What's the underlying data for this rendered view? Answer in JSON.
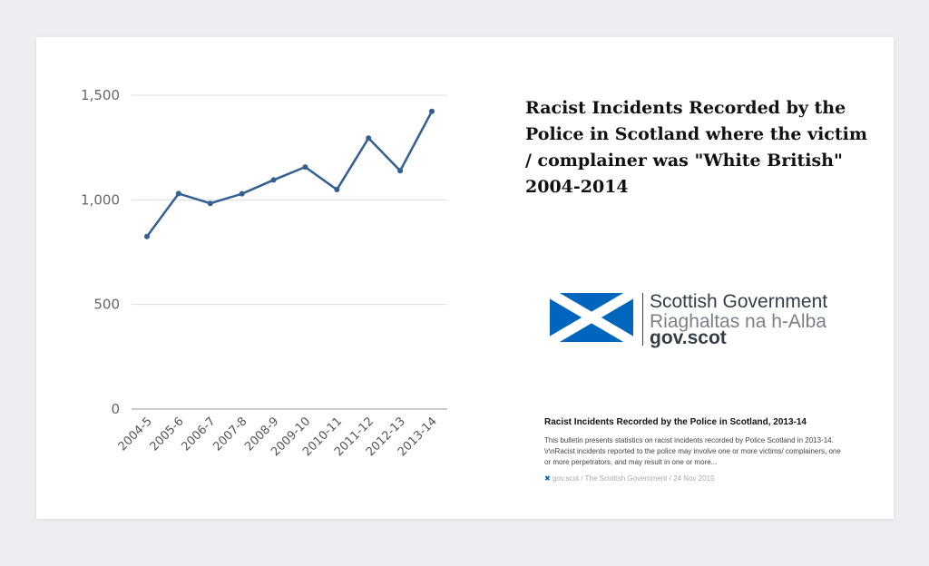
{
  "chart_data": {
    "type": "line",
    "title": "Racist Incidents Recorded by the Police in Scotland where the victim / complainer was \"White British\" 2004-2014",
    "categories": [
      "2004-5",
      "2005-6",
      "2006-7",
      "2007-8",
      "2008-9",
      "2009-10",
      "2010-11",
      "2011-12",
      "2012-13",
      "2013-14"
    ],
    "series": [
      {
        "name": "White British",
        "values": [
          825,
          1030,
          983,
          1029,
          1095,
          1157,
          1049,
          1295,
          1139,
          1423
        ]
      }
    ],
    "yticks": [
      0,
      500,
      1000,
      1500
    ],
    "ytick_labels": [
      "0",
      "500",
      "1,000",
      "1,500"
    ],
    "ylim": [
      0,
      1500
    ],
    "grid": true,
    "color": "#335f91"
  },
  "card": {
    "logo": {
      "line1": "Scottish Government",
      "line2": "Riaghaltas na h-Alba",
      "line3": "gov.scot"
    },
    "headline": "Racist Incidents Recorded by the Police in Scotland, 2013-14",
    "description": "This bulletin presents statistics on racist incidents recorded by Police Scotland in 2013-14. \\r\\nRacist incidents reported to the police may involve one or more victims/ complainers, one or more perpetrators, and may result in one or more...",
    "site": "gov.scot",
    "publisher": "The Scottish Government",
    "date": "24 Nov 2015"
  }
}
